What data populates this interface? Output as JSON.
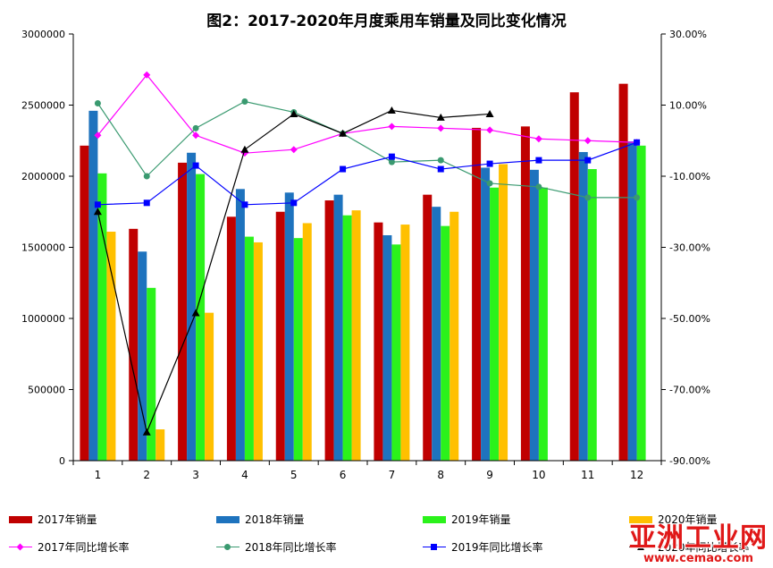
{
  "chart_data": {
    "type": "bar",
    "title": "图2：2017-2020年月度乘用车销量及同比变化情况",
    "categories": [
      "1",
      "2",
      "3",
      "4",
      "5",
      "6",
      "7",
      "8",
      "9",
      "10",
      "11",
      "12"
    ],
    "y_left": {
      "ylim": [
        0,
        3000000
      ],
      "ticks": [
        "0",
        "500000",
        "1000000",
        "1500000",
        "2000000",
        "2500000",
        "3000000"
      ]
    },
    "y_right": {
      "ylim": [
        -90,
        30
      ],
      "ticks": [
        "-90.00%",
        "-70.00%",
        "-50.00%",
        "-30.00%",
        "-10.00%",
        "10.00%",
        "30.00%"
      ]
    },
    "bar_series": [
      {
        "name": "2017年销量",
        "color": "#c00000",
        "values": [
          2215000,
          1630000,
          2095000,
          1715000,
          1750000,
          1830000,
          1675000,
          1870000,
          2340000,
          2350000,
          2590000,
          2650000
        ]
      },
      {
        "name": "2018年销量",
        "color": "#1e73be",
        "values": [
          2460000,
          1470000,
          2165000,
          1910000,
          1885000,
          1870000,
          1585000,
          1785000,
          2060000,
          2045000,
          2170000,
          2245000
        ]
      },
      {
        "name": "2019年销量",
        "color": "#2bf21b",
        "values": [
          2020000,
          1215000,
          2015000,
          1575000,
          1565000,
          1725000,
          1520000,
          1650000,
          1920000,
          1920000,
          2050000,
          2215000
        ]
      },
      {
        "name": "2020年销量",
        "color": "#ffc000",
        "values": [
          1610000,
          220000,
          1040000,
          1535000,
          1670000,
          1760000,
          1660000,
          1750000,
          2085000,
          null,
          null,
          null
        ]
      }
    ],
    "line_series": [
      {
        "name": "2017年同比增长率",
        "color": "#ff00ff",
        "marker": "diamond",
        "values": [
          1.5,
          18.5,
          1.5,
          -3.5,
          -2.5,
          2.0,
          4.0,
          3.5,
          3.0,
          0.5,
          0.0,
          -0.5
        ]
      },
      {
        "name": "2018年同比增长率",
        "color": "#3a9a70",
        "marker": "circle",
        "values": [
          10.5,
          -10.0,
          3.5,
          11.0,
          8.0,
          2.0,
          -6.0,
          -5.5,
          -12.0,
          -13.0,
          -16.0,
          -16.0
        ]
      },
      {
        "name": "2019年同比增长率",
        "color": "#0000ff",
        "marker": "square",
        "values": [
          -18.0,
          -17.5,
          -7.0,
          -18.0,
          -17.5,
          -8.0,
          -4.5,
          -8.0,
          -6.5,
          -5.5,
          -5.5,
          -0.5
        ]
      },
      {
        "name": "2020年同比增长率",
        "color": "#000000",
        "marker": "triangle",
        "values": [
          -20.0,
          -82.0,
          -48.5,
          -2.5,
          7.5,
          2.0,
          8.5,
          6.5,
          7.5,
          null,
          null,
          null
        ]
      }
    ],
    "grid": false,
    "legend": "bottom"
  },
  "watermark": {
    "main": "亚洲工业网",
    "sub": "www.cemao.com"
  }
}
